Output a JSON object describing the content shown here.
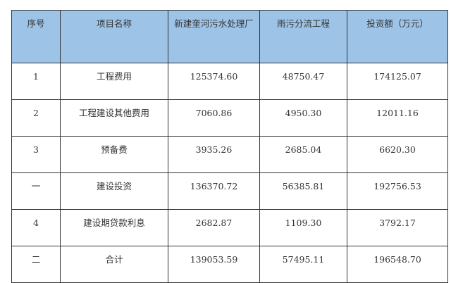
{
  "table": {
    "headers": [
      "序号",
      "项目名称",
      "新建奎河污水处理厂",
      "雨污分流工程",
      "投资额（万元）"
    ],
    "rows": [
      [
        "1",
        "工程费用",
        "125374.60",
        "48750.47",
        "174125.07"
      ],
      [
        "2",
        "工程建设其他费用",
        "7060.86",
        "4950.30",
        "12011.16"
      ],
      [
        "3",
        "预备费",
        "3935.26",
        "2685.04",
        "6620.30"
      ],
      [
        "一",
        "建设投资",
        "136370.72",
        "56385.81",
        "192756.53"
      ],
      [
        "4",
        "建设期贷款利息",
        "2682.87",
        "1109.30",
        "3792.17"
      ],
      [
        "二",
        "合计",
        "139053.59",
        "57495.11",
        "196548.70"
      ]
    ],
    "header_color": "#9dc3e6"
  }
}
